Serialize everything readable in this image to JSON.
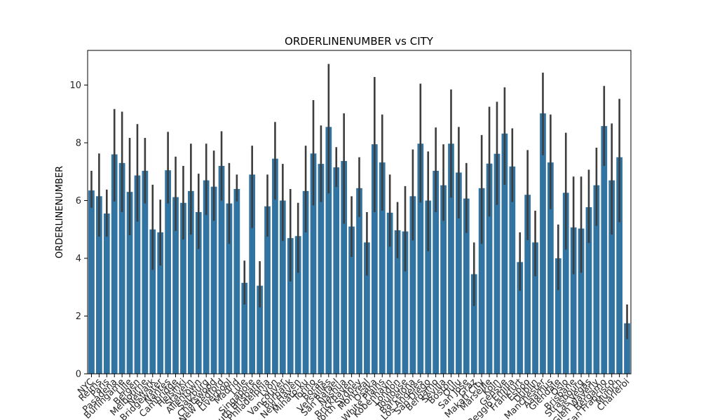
{
  "chart_data": {
    "type": "bar",
    "title": "ORDERLINENUMBER vs CITY",
    "xlabel": "",
    "ylabel": "ORDERLINENUMBER",
    "ylim": [
      0,
      11.2
    ],
    "yticks": [
      0,
      2,
      4,
      6,
      8,
      10
    ],
    "grid": false,
    "bar_color": "#3274a1",
    "errorbar_color": "#3d3d3d",
    "categories": [
      "NYC",
      "Reims",
      "Paris",
      "Pasadena",
      "Burlingame",
      "Lille",
      "Bergen",
      "Melbourne",
      "Newark",
      "Bridgewater",
      "Nantes",
      "Cambridge",
      "Helsinki",
      "Stavern",
      "Allentown",
      "Salzburg",
      "Chatswood",
      "New Bedford",
      "Liverpool",
      "Madrid",
      "Lule",
      "Singapore",
      "South Brisbane",
      "Philadelphia",
      "Lyon",
      "Vancouver",
      "Burbank",
      "New Haven",
      "Minato-ku",
      "Torino",
      "Boras",
      "Versailles",
      "San Rafael",
      "Nashua",
      "Brickhaven",
      "North Sydney",
      "Montreal",
      "Osaka",
      "White Plains",
      "Kobenhavn",
      "London",
      "Toulouse",
      "Barcelona",
      "Los Angeles",
      "San Diego",
      "Bergamo",
      "Sevilla",
      "Boston",
      "Oulu",
      "San Jose",
      "Graz",
      "Makati City",
      "Marseille",
      "Koln",
      "Gensve",
      "Reggio Emilia",
      "Frankfurt",
      "Espoo",
      "Dublin",
      "Manchester",
      "Aaarhus",
      "Glendale",
      "Oslo",
      "Brisbane",
      "Strasbourg",
      "Las Vegas",
      "Glen Waverly",
      "Bergamo",
      "San Francisco",
      "Munich",
      "Charleroi"
    ],
    "values": [
      6.35,
      6.15,
      5.55,
      7.6,
      7.3,
      6.3,
      6.87,
      7.03,
      5.0,
      4.9,
      7.05,
      6.12,
      5.92,
      6.33,
      5.6,
      6.7,
      6.48,
      7.2,
      5.9,
      6.4,
      3.15,
      6.9,
      3.05,
      5.8,
      7.45,
      6.0,
      4.7,
      4.77,
      6.33,
      7.63,
      7.27,
      8.55,
      7.15,
      7.37,
      5.1,
      6.43,
      4.55,
      7.95,
      7.32,
      5.58,
      4.97,
      4.93,
      6.15,
      7.97,
      6.0,
      7.03,
      6.53,
      7.97,
      6.97,
      6.07,
      3.45,
      6.43,
      7.28,
      7.62,
      8.32,
      7.18,
      3.87,
      6.2,
      4.55,
      9.02,
      7.32,
      4.0,
      6.27,
      5.07,
      5.03,
      5.77,
      6.53,
      8.58,
      6.7,
      7.5,
      1.75
    ],
    "err_low": [
      5.75,
      4.75,
      4.75,
      5.97,
      5.6,
      4.8,
      5.27,
      5.9,
      3.6,
      3.75,
      5.9,
      4.95,
      4.65,
      4.82,
      4.32,
      5.5,
      5.3,
      6.0,
      4.5,
      5.97,
      2.4,
      5.05,
      2.3,
      4.75,
      6.03,
      4.6,
      3.2,
      3.5,
      4.9,
      5.83,
      5.95,
      6.25,
      6.47,
      5.2,
      4.05,
      5.43,
      3.4,
      5.6,
      5.65,
      4.4,
      4.0,
      3.55,
      4.62,
      5.93,
      4.25,
      5.6,
      5.3,
      6.1,
      5.38,
      4.88,
      2.35,
      4.5,
      5.45,
      5.85,
      6.55,
      5.95,
      2.88,
      4.63,
      3.38,
      7.57,
      5.7,
      2.9,
      4.3,
      3.45,
      3.5,
      4.53,
      5.12,
      7.2,
      4.82,
      5.25,
      1.2
    ],
    "err_high": [
      7.03,
      7.63,
      6.38,
      9.17,
      9.08,
      8.17,
      8.65,
      8.17,
      6.55,
      6.03,
      8.38,
      7.52,
      7.2,
      7.97,
      6.93,
      7.97,
      7.73,
      8.4,
      7.3,
      6.9,
      3.92,
      7.9,
      3.9,
      6.9,
      8.72,
      7.27,
      6.4,
      5.92,
      7.9,
      9.48,
      8.6,
      10.73,
      7.85,
      9.02,
      6.15,
      7.5,
      5.6,
      10.28,
      8.98,
      6.9,
      5.95,
      6.5,
      7.77,
      10.05,
      7.7,
      8.53,
      7.95,
      9.85,
      8.55,
      7.3,
      4.55,
      8.27,
      9.25,
      9.42,
      9.92,
      8.5,
      4.9,
      7.75,
      5.65,
      10.43,
      8.98,
      5.17,
      8.35,
      6.83,
      6.83,
      7.07,
      7.83,
      9.97,
      8.67,
      9.52,
      2.4
    ]
  }
}
